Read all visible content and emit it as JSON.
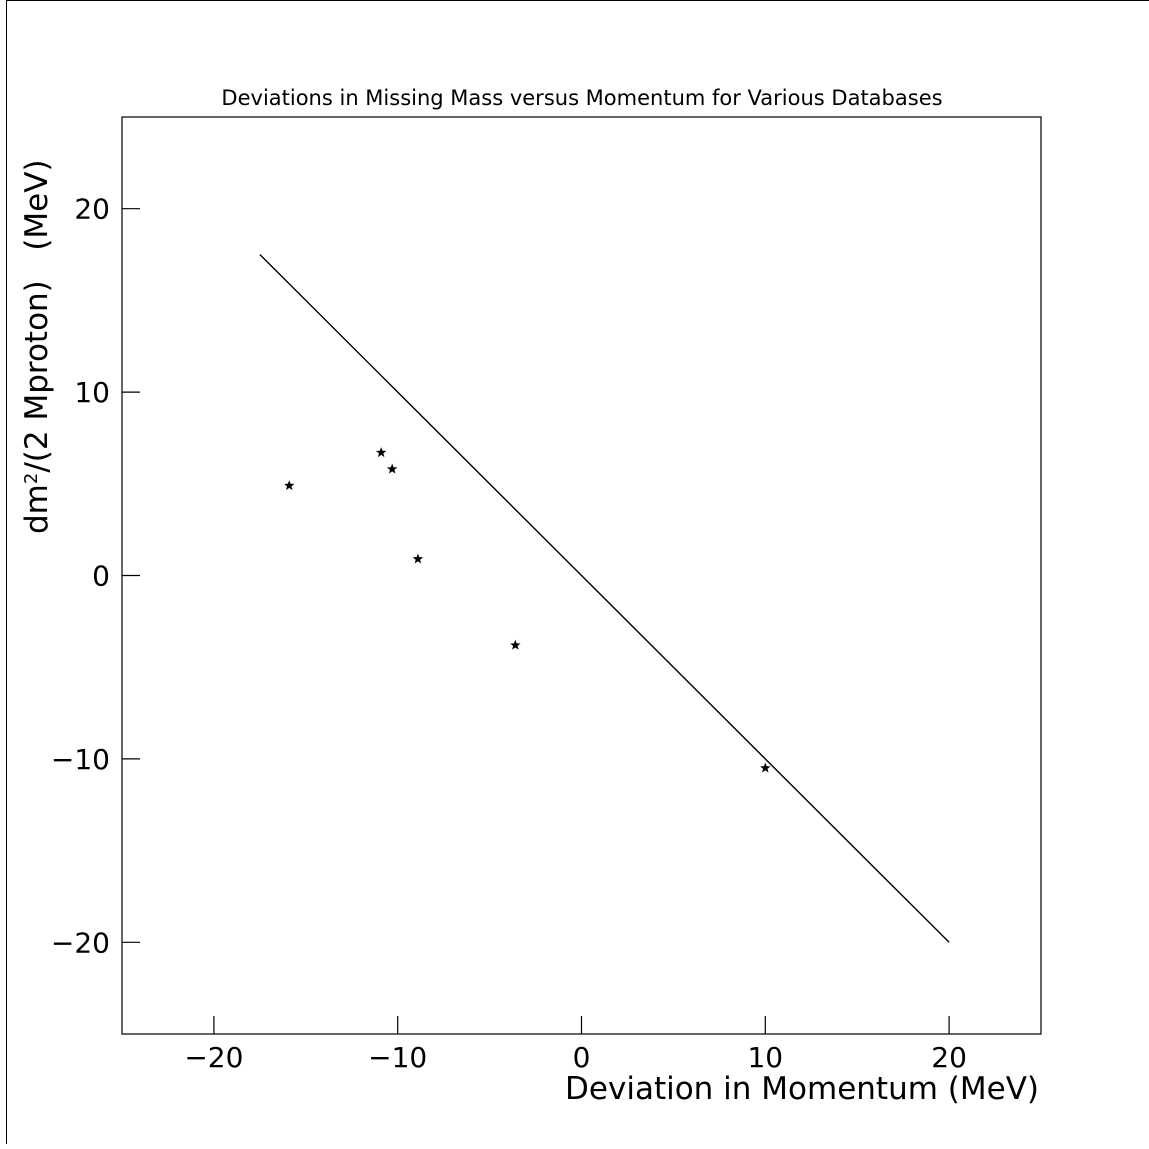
{
  "chart_data": {
    "type": "scatter",
    "title": "Deviations in Missing Mass versus Momentum for Various Databases",
    "xlabel": "Deviation in Momentum (MeV)",
    "ylabel_main": "dm",
    "ylabel_sup": "2",
    "ylabel_rest": "/(2 Mproton)   (MeV)",
    "xlim": [
      -25,
      25
    ],
    "ylim": [
      -25,
      25
    ],
    "x_ticks": [
      -20,
      -10,
      0,
      10,
      20
    ],
    "y_ticks": [
      -20,
      -10,
      0,
      10,
      20
    ],
    "x_tick_labels": [
      "−20",
      "−10",
      "0",
      "10",
      "20"
    ],
    "y_tick_labels": [
      "−20",
      "−10",
      "0",
      "10",
      "20"
    ],
    "grid": false,
    "series": [
      {
        "marker": "star",
        "color": "#000000",
        "points": [
          {
            "x": -15.9,
            "y": 4.9
          },
          {
            "x": -10.9,
            "y": 6.7
          },
          {
            "x": -10.3,
            "y": 5.8
          },
          {
            "x": -8.9,
            "y": 0.9
          },
          {
            "x": -3.6,
            "y": -3.8
          },
          {
            "x": 10.0,
            "y": -10.5
          }
        ]
      },
      {
        "type": "line",
        "color": "#000000",
        "points": [
          {
            "x": -17.5,
            "y": 17.5
          },
          {
            "x": 20.0,
            "y": -20.0
          }
        ]
      }
    ]
  }
}
